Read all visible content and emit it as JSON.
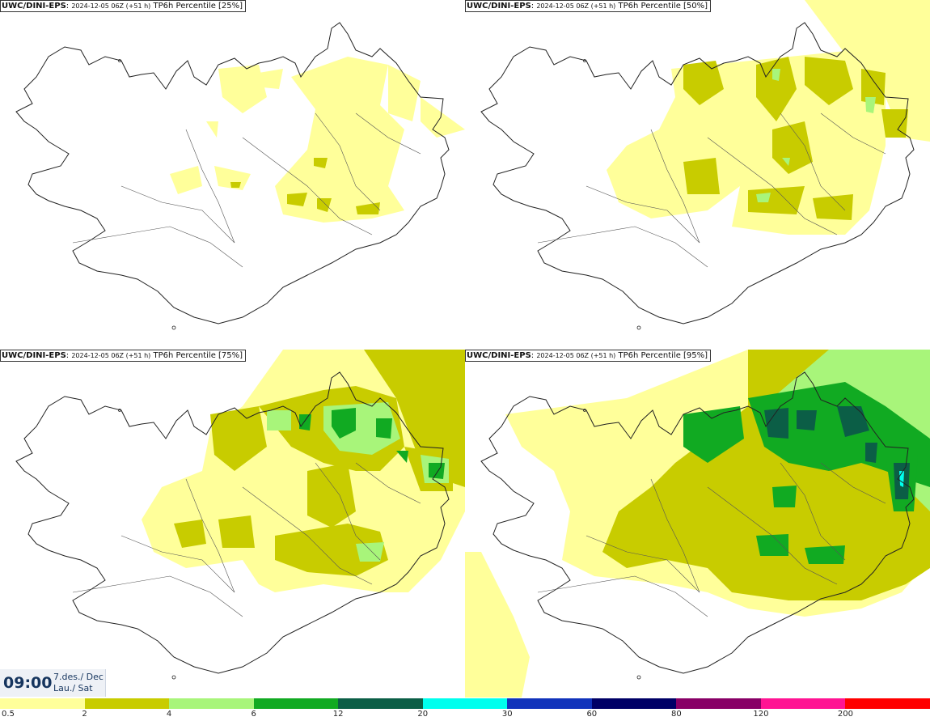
{
  "panels": [
    {
      "model": "UWC/DINI-EPS",
      "date": "2024-12-05 06Z (+51 h)",
      "product": "TP6h Percentile [25%]"
    },
    {
      "model": "UWC/DINI-EPS",
      "date": "2024-12-05 06Z (+51 h)",
      "product": "TP6h Percentile [50%]"
    },
    {
      "model": "UWC/DINI-EPS",
      "date": "2024-12-05 06Z (+51 h)",
      "product": "TP6h Percentile [75%]"
    },
    {
      "model": "UWC/DINI-EPS",
      "date": "2024-12-05 06Z (+51 h)",
      "product": "TP6h Percentile [95%]"
    }
  ],
  "valid_time": {
    "time": "09:00",
    "date_line": "7.des./ Dec",
    "day_line": "Lau./ Sat"
  },
  "legend": {
    "colors": [
      "#ffff9a",
      "#c8cc00",
      "#a8f57a",
      "#11aa22",
      "#0b5e46",
      "#00ffee",
      "#1133bb",
      "#000066",
      "#880066",
      "#ff1493",
      "#ff0000"
    ],
    "labels": [
      "0.5",
      "2",
      "4",
      "6",
      "12",
      "20",
      "30",
      "60",
      "80",
      "120",
      "200"
    ]
  }
}
